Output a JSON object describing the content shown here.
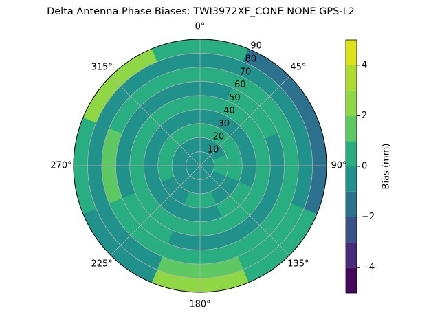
{
  "chart_data": {
    "type": "polar-contour",
    "title": "Delta Antenna Phase Biases: TWI3972XF_CONE  NONE GPS-L2",
    "theta_ticks": [
      {
        "value": 0,
        "label": "0°"
      },
      {
        "value": 45,
        "label": "45°"
      },
      {
        "value": 90,
        "label": "90°"
      },
      {
        "value": 135,
        "label": "135°"
      },
      {
        "value": 180,
        "label": "180°"
      },
      {
        "value": 225,
        "label": "225°"
      },
      {
        "value": 270,
        "label": "270°"
      },
      {
        "value": 315,
        "label": "315°"
      }
    ],
    "rlim": [
      0,
      90
    ],
    "rticks": [
      10,
      20,
      30,
      40,
      50,
      60,
      70,
      80,
      90
    ],
    "azimuth_bins": [
      0,
      45,
      90,
      135,
      180,
      225,
      270,
      315
    ],
    "zenith_bins": [
      0,
      10,
      20,
      30,
      40,
      50,
      60,
      70,
      80,
      90
    ],
    "z": [
      [
        -0.5,
        -0.5,
        -0.5,
        -0.5,
        -0.5,
        -0.5,
        -0.5,
        -0.5
      ],
      [
        -0.5,
        -0.5,
        0.5,
        -0.5,
        -0.5,
        -0.5,
        -0.5,
        -0.5
      ],
      [
        0.5,
        0.5,
        0.5,
        -0.5,
        0.5,
        -0.5,
        0.5,
        0.5
      ],
      [
        -0.5,
        -0.5,
        -0.5,
        0.5,
        -0.5,
        -0.5,
        -0.5,
        -0.5
      ],
      [
        0.5,
        0.5,
        0.5,
        0.5,
        0.5,
        0.5,
        0.5,
        0.5
      ],
      [
        -0.5,
        0.5,
        -0.5,
        -0.5,
        -0.5,
        0.5,
        -0.5,
        -0.5
      ],
      [
        0.5,
        0.5,
        0.5,
        0.5,
        0.5,
        0.5,
        1.5,
        0.5
      ],
      [
        -0.5,
        -0.5,
        -0.5,
        0.5,
        1.5,
        -0.5,
        -0.5,
        -0.5
      ],
      [
        0.5,
        -1.5,
        -1.5,
        0.5,
        2.5,
        -0.5,
        0.5,
        2.5
      ]
    ],
    "colorbar": {
      "label": "Bias (mm)",
      "levels": [
        -5,
        -4,
        -3,
        -2,
        -1,
        0,
        1,
        2,
        3,
        4,
        5
      ],
      "colors": [
        "#46085c",
        "#472d7b",
        "#3b528b",
        "#2c728e",
        "#21918c",
        "#28ae80",
        "#5ec962",
        "#8fd744",
        "#addc30",
        "#dde318"
      ],
      "ticks": [
        {
          "value": -4,
          "label": "−4"
        },
        {
          "value": -2,
          "label": "−2"
        },
        0,
        2,
        4
      ]
    }
  }
}
